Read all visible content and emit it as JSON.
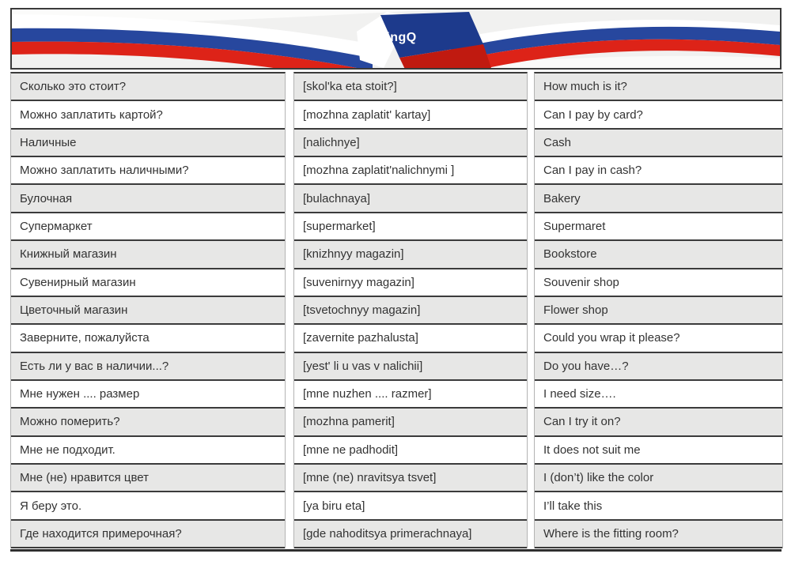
{
  "header": {
    "logo_text": "LingQ"
  },
  "colors": {
    "flag_blue": "#27479e",
    "flag_blue_dark": "#1d3a8c",
    "flag_red": "#dd2318",
    "flag_red_dark": "#c01a10",
    "flag_white": "#ffffff",
    "header_bg": "#f1f1f0",
    "row_bg": "#ffffff",
    "row_alt_bg": "#e7e7e6",
    "separator_dark": "#3b3b3b",
    "border_light": "#b3b3b3",
    "text": "#333333"
  },
  "table": {
    "columns": [
      "russian",
      "transliteration",
      "english"
    ],
    "rows": [
      {
        "russian": "Сколько это стоит?",
        "transliteration": "[skol'ka eta stoit?]",
        "english": "How much is it?"
      },
      {
        "russian": "Можно заплатить картой?",
        "transliteration": "[mozhna zaplatit' kartay]",
        "english": "Can I pay by card?"
      },
      {
        "russian": "Наличные",
        "transliteration": "[nalichnye]",
        "english": "Cash"
      },
      {
        "russian": "Можно заплатить наличными?",
        "transliteration": "[mozhna zaplatit'nalichnymi ]",
        "english": "Can I pay in cash?"
      },
      {
        "russian": "Булочная",
        "transliteration": "[bulachnaya]",
        "english": "Bakery"
      },
      {
        "russian": "Супермаркет",
        "transliteration": "[supermarket]",
        "english": "Supermaret"
      },
      {
        "russian": "Книжный магазин",
        "transliteration": "[knizhnyy magazin]",
        "english": "Bookstore"
      },
      {
        "russian": "Сувенирный магазин",
        "transliteration": "[suvenirnyy magazin]",
        "english": "Souvenir shop"
      },
      {
        "russian": "Цветочный магазин",
        "transliteration": "[tsvetochnyy magazin]",
        "english": "Flower shop"
      },
      {
        "russian": "Заверните, пожалуйста",
        "transliteration": "[zavernite pazhalusta]",
        "english": "Could you wrap it please?"
      },
      {
        "russian": "Есть ли у вас в наличии...?",
        "transliteration": "[yest' li u vas v nalichii]",
        "english": "Do you have…?"
      },
      {
        "russian": "Мне нужен .... размер",
        "transliteration": "[mne nuzhen .... razmer]",
        "english": "I need size…."
      },
      {
        "russian": "Можно померить?",
        "transliteration": "[mozhna pamerit]",
        "english": "Can I try it on?"
      },
      {
        "russian": "Мне не подходит.",
        "transliteration": "[mne ne padhodit]",
        "english": "It does not suit me"
      },
      {
        "russian": "Мне (не) нравится цвет",
        "transliteration": "[mne (ne) nravitsya tsvet]",
        "english": "I (don’t) like the color"
      },
      {
        "russian": "Я беру это.",
        "transliteration": "[ya biru eta]",
        "english": "I’ll take this"
      },
      {
        "russian": "Где находится примерочная?",
        "transliteration": "[gde nahoditsya primerachnaya]",
        "english": "Where is the fitting room?"
      }
    ]
  }
}
